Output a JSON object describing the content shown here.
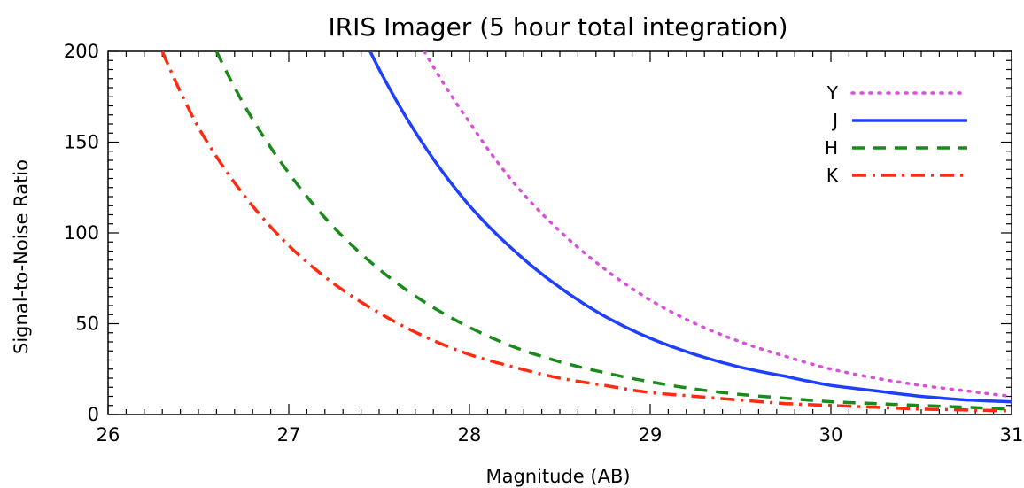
{
  "chart_data": {
    "type": "line",
    "title": "IRIS Imager (5 hour total integration)",
    "xlabel": "Magnitude (AB)",
    "ylabel": "Signal-to-Noise Ratio",
    "xlim": [
      26,
      31
    ],
    "ylim": [
      0,
      200
    ],
    "xticks": [
      "26",
      "27",
      "28",
      "29",
      "30",
      "31"
    ],
    "yticks": [
      "0",
      "50",
      "100",
      "150",
      "200"
    ],
    "grid": false,
    "legend_position": "top-right",
    "series": [
      {
        "name": "Y",
        "color": "#d94fd9",
        "style": "dotted",
        "x": [
          27.75,
          28.0,
          28.25,
          28.5,
          28.75,
          29.0,
          29.25,
          29.5,
          29.75,
          30.0,
          30.25,
          30.5,
          30.75,
          31.0
        ],
        "y": [
          200,
          161,
          127,
          101,
          80,
          63,
          50,
          40,
          32,
          25,
          20,
          16,
          13,
          10
        ]
      },
      {
        "name": "J",
        "color": "#1f3fff",
        "style": "solid",
        "x": [
          27.45,
          27.75,
          28.0,
          28.25,
          28.5,
          28.75,
          29.0,
          29.25,
          29.5,
          29.75,
          30.0,
          30.25,
          30.5,
          30.75,
          31.0
        ],
        "y": [
          200,
          148,
          115,
          90,
          70,
          54,
          42,
          33,
          26,
          21,
          16,
          13,
          10,
          8,
          7
        ]
      },
      {
        "name": "H",
        "color": "#1a8a1a",
        "style": "dashed",
        "x": [
          26.6,
          26.75,
          27.0,
          27.25,
          27.5,
          27.75,
          28.0,
          28.25,
          28.5,
          28.75,
          29.0,
          29.25,
          29.5,
          29.75,
          30.0,
          30.25,
          30.5,
          30.75,
          31.0
        ],
        "y": [
          200,
          171,
          133,
          103,
          80,
          62,
          48,
          37,
          29,
          23,
          18,
          14,
          11,
          9,
          7,
          6,
          5,
          4,
          3
        ]
      },
      {
        "name": "K",
        "color": "#ff2a10",
        "style": "dashdot",
        "x": [
          26.3,
          26.5,
          26.75,
          27.0,
          27.25,
          27.5,
          27.75,
          28.0,
          28.25,
          28.5,
          28.75,
          29.0,
          29.25,
          29.5,
          29.75,
          30.0,
          30.25,
          30.5,
          30.75,
          31.0
        ],
        "y": [
          200,
          158,
          121,
          93,
          72,
          56,
          43,
          33,
          26,
          20,
          16,
          12,
          10,
          8,
          6,
          5,
          4,
          3,
          2.5,
          2
        ]
      }
    ]
  }
}
